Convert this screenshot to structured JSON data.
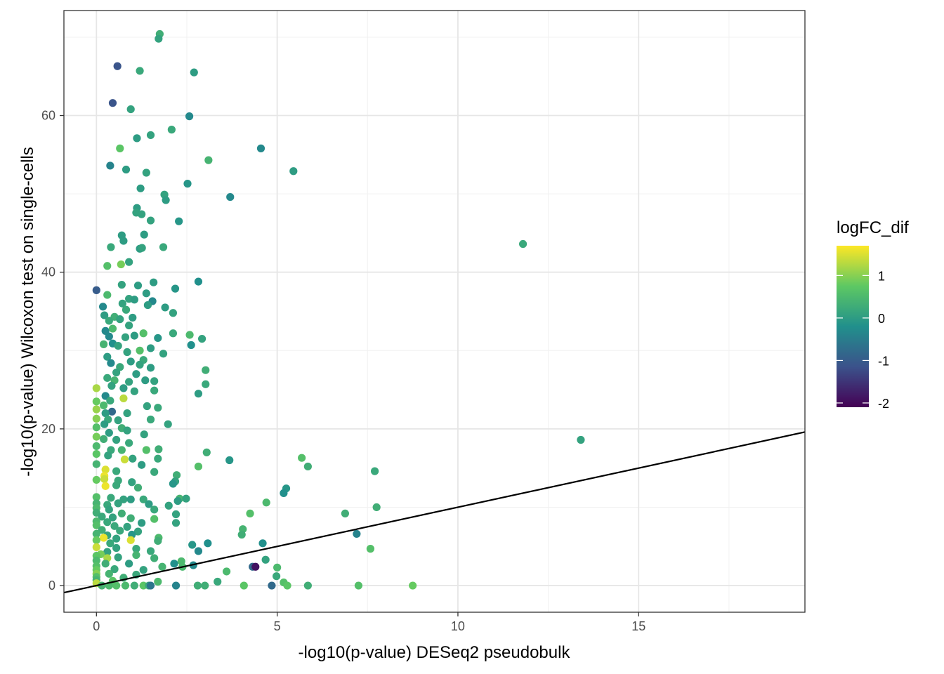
{
  "chart_data": {
    "type": "scatter",
    "title": "",
    "xlabel": "-log10(p-value) DESeq2 pseudobulk",
    "ylabel": "-log10(p-value) Wilcoxon test on single-cells",
    "xlim": [
      -0.9,
      19.6
    ],
    "ylim": [
      -3.4,
      73.4
    ],
    "x_ticks": [
      0,
      5,
      10,
      15
    ],
    "y_ticks": [
      0,
      20,
      40,
      60
    ],
    "x_tick_labels": [
      "0",
      "5",
      "10",
      "15"
    ],
    "y_tick_labels": [
      "0",
      "20",
      "40",
      "60"
    ],
    "grid": true,
    "reference_line": {
      "intercept": 0,
      "slope": 1
    },
    "color_scale": {
      "title": "logFC_dif",
      "palette": "viridis",
      "min": -2.1,
      "max": 1.7,
      "ticks": [
        1,
        0,
        -1,
        -2
      ],
      "tick_labels": [
        "1",
        "0",
        "-1",
        "-2"
      ],
      "stops": [
        "#440154",
        "#3B528B",
        "#21908C",
        "#5DC863",
        "#FDE725"
      ]
    },
    "points": [
      [
        1.75,
        70.4,
        0.3
      ],
      [
        1.72,
        69.8,
        0.1
      ],
      [
        0.58,
        66.3,
        -1.1
      ],
      [
        1.2,
        65.7,
        0.2
      ],
      [
        2.7,
        65.5,
        0.0
      ],
      [
        0.45,
        61.6,
        -1.1
      ],
      [
        0.95,
        60.8,
        0.1
      ],
      [
        2.57,
        59.9,
        -0.3
      ],
      [
        2.08,
        58.2,
        0.2
      ],
      [
        1.5,
        57.5,
        0.1
      ],
      [
        1.12,
        57.1,
        0.0
      ],
      [
        0.65,
        55.8,
        0.7
      ],
      [
        4.55,
        55.8,
        -0.3
      ],
      [
        3.1,
        54.3,
        0.4
      ],
      [
        0.38,
        53.6,
        -0.4
      ],
      [
        0.82,
        53.1,
        0.0
      ],
      [
        1.38,
        52.7,
        0.1
      ],
      [
        5.45,
        52.9,
        0.0
      ],
      [
        2.52,
        51.3,
        -0.1
      ],
      [
        1.22,
        50.7,
        0.0
      ],
      [
        1.88,
        49.9,
        0.1
      ],
      [
        1.92,
        49.2,
        0.0
      ],
      [
        3.7,
        49.6,
        -0.3
      ],
      [
        1.12,
        48.2,
        0.0
      ],
      [
        1.1,
        47.6,
        0.1
      ],
      [
        1.25,
        47.4,
        0.1
      ],
      [
        1.5,
        46.6,
        0.1
      ],
      [
        2.28,
        46.5,
        -0.1
      ],
      [
        0.7,
        44.7,
        0.0
      ],
      [
        1.32,
        44.8,
        0.0
      ],
      [
        0.75,
        44.0,
        0.0
      ],
      [
        0.4,
        43.2,
        0.2
      ],
      [
        1.2,
        43.0,
        0.0
      ],
      [
        1.26,
        43.1,
        0.1
      ],
      [
        1.85,
        43.2,
        0.2
      ],
      [
        11.8,
        43.6,
        0.2
      ],
      [
        0.68,
        41.0,
        0.9
      ],
      [
        0.9,
        41.3,
        0.1
      ],
      [
        0.3,
        40.8,
        0.6
      ],
      [
        0.0,
        37.7,
        -1.0
      ],
      [
        1.58,
        38.7,
        0.0
      ],
      [
        2.18,
        37.9,
        -0.1
      ],
      [
        0.7,
        38.4,
        0.1
      ],
      [
        1.15,
        38.3,
        0.0
      ],
      [
        2.82,
        38.8,
        -0.2
      ],
      [
        0.3,
        37.1,
        0.5
      ],
      [
        1.38,
        37.3,
        0.0
      ],
      [
        0.9,
        36.6,
        0.1
      ],
      [
        1.05,
        36.5,
        0.0
      ],
      [
        1.55,
        36.3,
        -0.3
      ],
      [
        0.72,
        36.0,
        0.1
      ],
      [
        0.18,
        35.6,
        -0.3
      ],
      [
        1.42,
        35.8,
        0.0
      ],
      [
        1.9,
        35.5,
        0.0
      ],
      [
        0.82,
        35.2,
        0.2
      ],
      [
        2.12,
        34.8,
        0.1
      ],
      [
        0.22,
        34.5,
        0.0
      ],
      [
        0.5,
        34.3,
        0.3
      ],
      [
        0.65,
        34.0,
        0.1
      ],
      [
        1.0,
        34.2,
        0.0
      ],
      [
        0.35,
        33.8,
        0.2
      ],
      [
        0.9,
        33.2,
        0.1
      ],
      [
        0.25,
        32.5,
        -0.3
      ],
      [
        0.45,
        32.8,
        0.5
      ],
      [
        1.3,
        32.2,
        0.6
      ],
      [
        2.12,
        32.2,
        0.2
      ],
      [
        2.58,
        32.0,
        0.5
      ],
      [
        0.35,
        31.8,
        -0.3
      ],
      [
        0.8,
        31.7,
        0.1
      ],
      [
        1.05,
        31.9,
        0.0
      ],
      [
        1.7,
        31.6,
        -0.1
      ],
      [
        2.92,
        31.5,
        0.1
      ],
      [
        0.45,
        30.9,
        -0.2
      ],
      [
        0.2,
        30.8,
        0.4
      ],
      [
        0.6,
        30.6,
        0.1
      ],
      [
        1.5,
        30.3,
        0.0
      ],
      [
        2.62,
        30.7,
        -0.2
      ],
      [
        1.2,
        30.0,
        0.6
      ],
      [
        0.85,
        29.8,
        0.1
      ],
      [
        1.85,
        29.6,
        0.1
      ],
      [
        0.3,
        29.2,
        0.0
      ],
      [
        1.3,
        28.8,
        0.2
      ],
      [
        0.4,
        28.4,
        -0.3
      ],
      [
        0.95,
        28.6,
        0.0
      ],
      [
        1.2,
        28.2,
        0.1
      ],
      [
        0.65,
        27.9,
        0.2
      ],
      [
        1.5,
        27.8,
        0.0
      ],
      [
        3.02,
        27.5,
        0.3
      ],
      [
        0.55,
        27.2,
        0.1
      ],
      [
        1.1,
        27.0,
        0.0
      ],
      [
        0.3,
        26.5,
        0.2
      ],
      [
        0.5,
        26.2,
        0.4
      ],
      [
        0.9,
        26.0,
        0.1
      ],
      [
        1.35,
        26.2,
        0.0
      ],
      [
        1.6,
        26.1,
        0.1
      ],
      [
        3.02,
        25.7,
        0.2
      ],
      [
        0.0,
        25.2,
        1.2
      ],
      [
        0.42,
        25.5,
        0.1
      ],
      [
        0.75,
        25.2,
        0.0
      ],
      [
        1.05,
        24.8,
        0.1
      ],
      [
        1.6,
        24.9,
        0.2
      ],
      [
        2.82,
        24.5,
        0.0
      ],
      [
        0.25,
        24.2,
        -0.3
      ],
      [
        0.0,
        23.5,
        0.8
      ],
      [
        0.38,
        23.6,
        0.2
      ],
      [
        0.75,
        23.9,
        1.3
      ],
      [
        0.2,
        23.0,
        0.5
      ],
      [
        1.4,
        22.9,
        0.1
      ],
      [
        1.7,
        22.7,
        0.2
      ],
      [
        0.0,
        22.5,
        1.1
      ],
      [
        0.43,
        22.2,
        -0.8
      ],
      [
        0.25,
        22.0,
        0.0
      ],
      [
        0.85,
        22.0,
        0.1
      ],
      [
        0.0,
        21.3,
        1.0
      ],
      [
        0.32,
        21.2,
        0.2
      ],
      [
        0.6,
        21.1,
        0.1
      ],
      [
        1.5,
        21.2,
        0.2
      ],
      [
        0.22,
        20.6,
        0.0
      ],
      [
        1.98,
        20.6,
        0.1
      ],
      [
        0.0,
        20.2,
        0.6
      ],
      [
        0.7,
        20.1,
        0.3
      ],
      [
        0.85,
        19.8,
        0.1
      ],
      [
        0.35,
        19.5,
        0.0
      ],
      [
        1.32,
        19.3,
        0.1
      ],
      [
        0.0,
        19.0,
        0.9
      ],
      [
        0.2,
        18.7,
        0.3
      ],
      [
        0.55,
        18.6,
        0.1
      ],
      [
        13.4,
        18.6,
        0.1
      ],
      [
        0.9,
        18.2,
        0.2
      ],
      [
        0.0,
        17.8,
        0.5
      ],
      [
        0.4,
        17.3,
        0.2
      ],
      [
        0.7,
        17.3,
        0.4
      ],
      [
        1.38,
        17.3,
        0.6
      ],
      [
        1.72,
        17.4,
        0.3
      ],
      [
        3.05,
        17.0,
        0.3
      ],
      [
        0.0,
        16.8,
        0.7
      ],
      [
        0.32,
        16.6,
        0.1
      ],
      [
        0.78,
        16.1,
        1.4
      ],
      [
        1.0,
        16.2,
        0.1
      ],
      [
        1.7,
        16.2,
        0.2
      ],
      [
        3.68,
        16.0,
        -0.1
      ],
      [
        5.68,
        16.3,
        0.6
      ],
      [
        0.0,
        15.5,
        0.4
      ],
      [
        1.25,
        15.4,
        0.0
      ],
      [
        5.85,
        15.2,
        0.3
      ],
      [
        0.25,
        14.8,
        1.5
      ],
      [
        0.55,
        14.6,
        0.2
      ],
      [
        1.6,
        14.5,
        0.2
      ],
      [
        2.82,
        15.2,
        0.6
      ],
      [
        7.7,
        14.6,
        0.2
      ],
      [
        0.22,
        14.0,
        1.6
      ],
      [
        0.22,
        13.6,
        1.4
      ],
      [
        0.0,
        13.5,
        0.8
      ],
      [
        0.6,
        13.4,
        0.2
      ],
      [
        0.98,
        13.2,
        0.1
      ],
      [
        2.22,
        14.1,
        0.3
      ],
      [
        2.18,
        13.3,
        0.1
      ],
      [
        0.25,
        12.7,
        1.6
      ],
      [
        0.55,
        12.8,
        0.2
      ],
      [
        1.15,
        12.5,
        0.3
      ],
      [
        2.12,
        13.0,
        -0.1
      ],
      [
        5.25,
        12.4,
        -0.1
      ],
      [
        5.18,
        11.8,
        -0.2
      ],
      [
        0.0,
        11.3,
        0.6
      ],
      [
        0.4,
        11.2,
        0.2
      ],
      [
        0.75,
        11.0,
        0.1
      ],
      [
        0.95,
        11.0,
        0.0
      ],
      [
        1.3,
        11.0,
        0.2
      ],
      [
        2.3,
        11.1,
        0.4
      ],
      [
        2.48,
        11.1,
        0.1
      ],
      [
        2.25,
        10.8,
        0.0
      ],
      [
        0.0,
        10.5,
        0.4
      ],
      [
        0.3,
        10.3,
        0.2
      ],
      [
        0.6,
        10.5,
        0.1
      ],
      [
        1.45,
        10.4,
        0.0
      ],
      [
        2.0,
        10.2,
        0.1
      ],
      [
        4.7,
        10.6,
        0.5
      ],
      [
        0.0,
        9.9,
        0.5
      ],
      [
        0.35,
        9.7,
        0.1
      ],
      [
        1.6,
        9.7,
        0.2
      ],
      [
        7.75,
        10.0,
        0.3
      ],
      [
        0.0,
        9.3,
        0.3
      ],
      [
        0.7,
        9.2,
        0.3
      ],
      [
        2.2,
        9.1,
        0.1
      ],
      [
        4.25,
        9.2,
        0.6
      ],
      [
        6.88,
        9.2,
        0.3
      ],
      [
        0.15,
        8.8,
        0.2
      ],
      [
        0.45,
        8.7,
        0.1
      ],
      [
        0.95,
        8.6,
        0.3
      ],
      [
        1.6,
        8.5,
        0.6
      ],
      [
        0.0,
        8.2,
        0.5
      ],
      [
        0.3,
        8.1,
        0.2
      ],
      [
        1.25,
        8.0,
        0.0
      ],
      [
        2.2,
        8.0,
        0.1
      ],
      [
        0.0,
        7.7,
        0.6
      ],
      [
        0.5,
        7.6,
        0.2
      ],
      [
        0.85,
        7.5,
        0.1
      ],
      [
        4.05,
        7.2,
        0.4
      ],
      [
        0.15,
        7.1,
        0.3
      ],
      [
        0.65,
        7.0,
        0.2
      ],
      [
        1.15,
        6.9,
        0.1
      ],
      [
        0.0,
        6.6,
        0.4
      ],
      [
        0.3,
        6.4,
        0.1
      ],
      [
        0.98,
        6.5,
        -0.1
      ],
      [
        4.02,
        6.5,
        0.3
      ],
      [
        7.2,
        6.6,
        -0.4
      ],
      [
        0.2,
        6.1,
        1.6
      ],
      [
        0.55,
        6.0,
        0.1
      ],
      [
        1.72,
        6.1,
        0.5
      ],
      [
        0.0,
        5.8,
        0.8
      ],
      [
        0.95,
        5.8,
        1.5
      ],
      [
        1.7,
        5.7,
        0.3
      ],
      [
        0.38,
        5.4,
        0.2
      ],
      [
        2.65,
        5.2,
        -0.1
      ],
      [
        3.08,
        5.4,
        -0.2
      ],
      [
        4.6,
        5.4,
        -0.2
      ],
      [
        0.0,
        4.9,
        1.4
      ],
      [
        0.55,
        4.8,
        0.1
      ],
      [
        1.1,
        4.7,
        0.2
      ],
      [
        7.58,
        4.7,
        0.6
      ],
      [
        0.3,
        4.3,
        0.1
      ],
      [
        1.5,
        4.4,
        0.2
      ],
      [
        2.82,
        4.4,
        -0.3
      ],
      [
        0.12,
        4.0,
        0.9
      ],
      [
        1.1,
        3.9,
        0.4
      ],
      [
        0.0,
        3.8,
        0.7
      ],
      [
        0.3,
        3.5,
        1.2
      ],
      [
        0.6,
        3.6,
        0.1
      ],
      [
        1.6,
        3.5,
        0.3
      ],
      [
        4.68,
        3.3,
        0.1
      ],
      [
        0.0,
        3.2,
        0.5
      ],
      [
        2.35,
        3.1,
        0.5
      ],
      [
        0.25,
        2.8,
        0.3
      ],
      [
        0.9,
        2.8,
        0.0
      ],
      [
        2.15,
        2.8,
        -0.2
      ],
      [
        2.68,
        2.6,
        -0.3
      ],
      [
        0.0,
        2.5,
        0.6
      ],
      [
        1.82,
        2.4,
        0.4
      ],
      [
        2.38,
        2.4,
        0.5
      ],
      [
        4.32,
        2.4,
        -0.8
      ],
      [
        4.4,
        2.4,
        -1.9
      ],
      [
        5.0,
        2.3,
        0.5
      ],
      [
        0.0,
        2.0,
        0.8
      ],
      [
        0.5,
        2.1,
        0.2
      ],
      [
        1.3,
        2.0,
        0.1
      ],
      [
        3.6,
        1.8,
        0.5
      ],
      [
        0.0,
        1.5,
        1.0
      ],
      [
        0.35,
        1.5,
        0.4
      ],
      [
        1.1,
        1.4,
        0.2
      ],
      [
        4.98,
        1.2,
        0.2
      ],
      [
        0.0,
        1.1,
        0.6
      ],
      [
        0.75,
        1.0,
        0.3
      ],
      [
        0.0,
        0.7,
        0.4
      ],
      [
        0.45,
        0.6,
        0.7
      ],
      [
        1.7,
        0.5,
        0.5
      ],
      [
        3.35,
        0.5,
        0.2
      ],
      [
        5.18,
        0.4,
        0.6
      ],
      [
        0.0,
        0.3,
        1.3
      ],
      [
        0.15,
        0.0,
        0.4
      ],
      [
        0.35,
        0.0,
        0.5
      ],
      [
        0.55,
        0.0,
        0.6
      ],
      [
        0.8,
        0.0,
        0.5
      ],
      [
        1.05,
        0.0,
        0.3
      ],
      [
        1.3,
        0.0,
        0.7
      ],
      [
        1.45,
        0.0,
        0.2
      ],
      [
        1.5,
        0.0,
        -0.6
      ],
      [
        2.2,
        0.0,
        -0.4
      ],
      [
        2.8,
        0.0,
        0.3
      ],
      [
        3.0,
        0.0,
        0.3
      ],
      [
        4.08,
        0.0,
        0.7
      ],
      [
        4.85,
        0.0,
        -0.8
      ],
      [
        5.28,
        0.0,
        0.7
      ],
      [
        5.85,
        0.0,
        0.3
      ],
      [
        7.25,
        0.0,
        0.6
      ],
      [
        8.75,
        0.0,
        0.8
      ]
    ]
  }
}
